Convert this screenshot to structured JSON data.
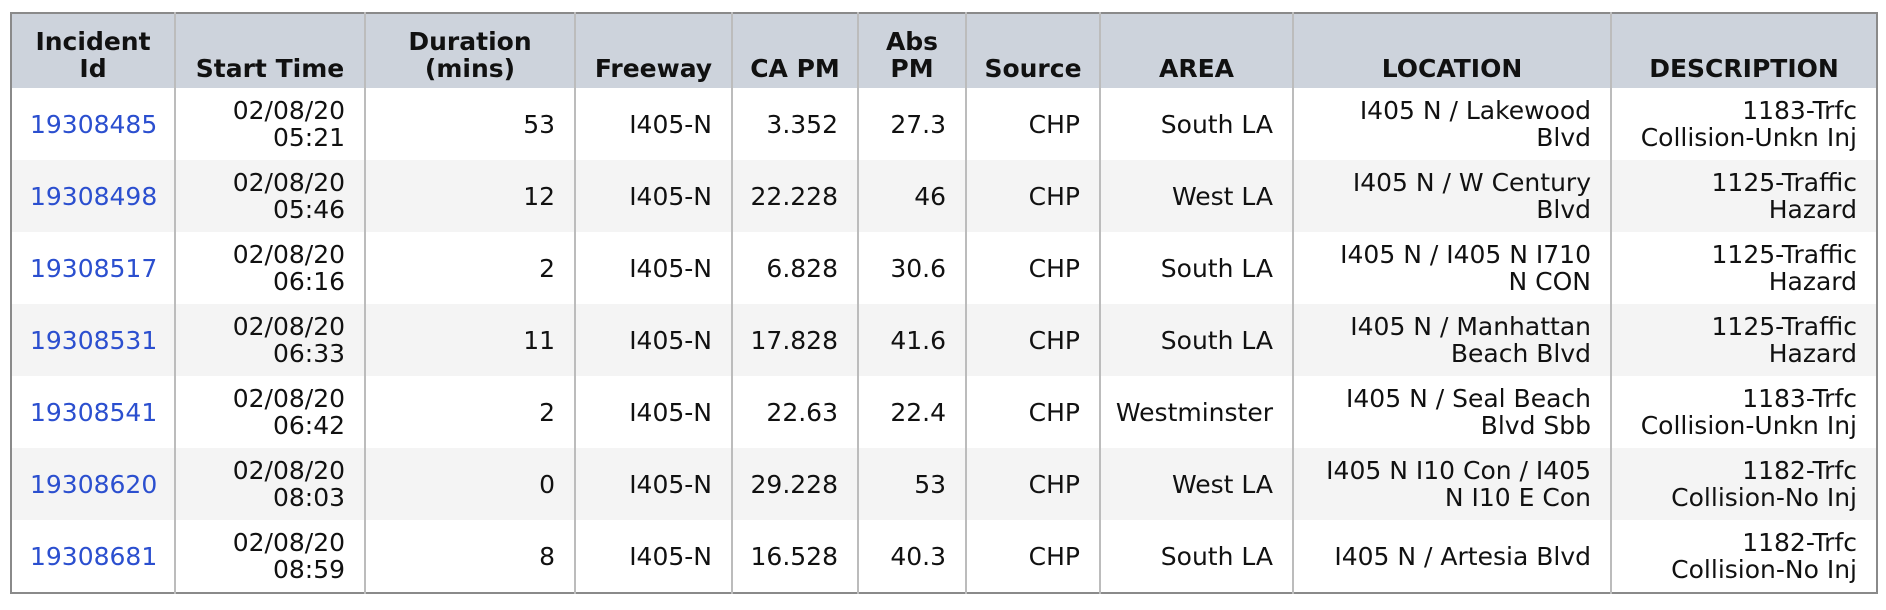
{
  "table": {
    "headers": [
      "Incident Id",
      "Start Time",
      "Duration (mins)",
      "Freeway",
      "CA PM",
      "Abs PM",
      "Source",
      "AREA",
      "LOCATION",
      "DESCRIPTION"
    ],
    "rows": [
      {
        "incident_id": "19308485",
        "start_date": "02/08/20",
        "start_clock": "05:21",
        "duration": "53",
        "freeway": "I405-N",
        "ca_pm": "3.352",
        "abs_pm": "27.3",
        "source": "CHP",
        "area": "South LA",
        "location_line1": "I405 N / Lakewood",
        "location_line2": "Blvd",
        "description_line1": "1183-Trfc",
        "description_line2": "Collision-Unkn Inj"
      },
      {
        "incident_id": "19308498",
        "start_date": "02/08/20",
        "start_clock": "05:46",
        "duration": "12",
        "freeway": "I405-N",
        "ca_pm": "22.228",
        "abs_pm": "46",
        "source": "CHP",
        "area": "West LA",
        "location_line1": "I405 N / W Century",
        "location_line2": "Blvd",
        "description_line1": "1125-Traffic",
        "description_line2": "Hazard"
      },
      {
        "incident_id": "19308517",
        "start_date": "02/08/20",
        "start_clock": "06:16",
        "duration": "2",
        "freeway": "I405-N",
        "ca_pm": "6.828",
        "abs_pm": "30.6",
        "source": "CHP",
        "area": "South LA",
        "location_line1": "I405 N / I405 N I710",
        "location_line2": "N CON",
        "description_line1": "1125-Traffic",
        "description_line2": "Hazard"
      },
      {
        "incident_id": "19308531",
        "start_date": "02/08/20",
        "start_clock": "06:33",
        "duration": "11",
        "freeway": "I405-N",
        "ca_pm": "17.828",
        "abs_pm": "41.6",
        "source": "CHP",
        "area": "South LA",
        "location_line1": "I405 N / Manhattan",
        "location_line2": "Beach Blvd",
        "description_line1": "1125-Traffic",
        "description_line2": "Hazard"
      },
      {
        "incident_id": "19308541",
        "start_date": "02/08/20",
        "start_clock": "06:42",
        "duration": "2",
        "freeway": "I405-N",
        "ca_pm": "22.63",
        "abs_pm": "22.4",
        "source": "CHP",
        "area": "Westminster",
        "location_line1": "I405 N / Seal Beach",
        "location_line2": "Blvd Sbb",
        "description_line1": "1183-Trfc",
        "description_line2": "Collision-Unkn Inj"
      },
      {
        "incident_id": "19308620",
        "start_date": "02/08/20",
        "start_clock": "08:03",
        "duration": "0",
        "freeway": "I405-N",
        "ca_pm": "29.228",
        "abs_pm": "53",
        "source": "CHP",
        "area": "West LA",
        "location_line1": "I405 N I10 Con / I405",
        "location_line2": "N I10 E Con",
        "description_line1": "1182-Trfc",
        "description_line2": "Collision-No Inj"
      },
      {
        "incident_id": "19308681",
        "start_date": "02/08/20",
        "start_clock": "08:59",
        "duration": "8",
        "freeway": "I405-N",
        "ca_pm": "16.528",
        "abs_pm": "40.3",
        "source": "CHP",
        "area": "South LA",
        "location_line1": "I405 N / Artesia Blvd",
        "location_line2": "",
        "description_line1": "1182-Trfc",
        "description_line2": "Collision-No Inj"
      }
    ]
  },
  "colors": {
    "header_bg": "#cdd3dc",
    "link": "#2b4fcf",
    "row_alt": "#f4f4f4",
    "border": "#8a8a8a"
  }
}
